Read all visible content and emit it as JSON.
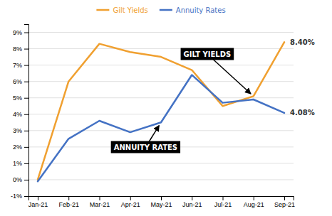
{
  "chart_data": {
    "type": "line",
    "categories": [
      "Jan-21",
      "Feb-21",
      "Mar-21",
      "Apr-21",
      "May-21",
      "Jun-21",
      "Jul-21",
      "Aug-21",
      "Sep-21"
    ],
    "series": [
      {
        "name": "Gilt Yields",
        "color": "#F0A030",
        "values": [
          0.0,
          6.0,
          8.3,
          7.8,
          7.5,
          6.7,
          4.5,
          5.1,
          8.4
        ],
        "value_labels": [
          null,
          null,
          null,
          null,
          null,
          null,
          null,
          null,
          "8.40%"
        ]
      },
      {
        "name": "Annuity Rates",
        "color": "#4472C4",
        "values": [
          -0.1,
          2.5,
          3.6,
          2.9,
          3.5,
          6.4,
          4.7,
          4.9,
          4.08
        ],
        "value_labels": [
          null,
          null,
          null,
          null,
          null,
          null,
          null,
          null,
          "4.08%"
        ]
      }
    ],
    "ylim": [
      -1,
      9.5
    ],
    "yticks": [
      {
        "value": -1,
        "label": "-1%"
      },
      {
        "value": 0,
        "label": "0%"
      },
      {
        "value": 1,
        "label": "1%"
      },
      {
        "value": 2,
        "label": "2%"
      },
      {
        "value": 3,
        "label": "3%"
      },
      {
        "value": 4,
        "label": "4%"
      },
      {
        "value": 5,
        "label": "5%"
      },
      {
        "value": 6,
        "label": "6%"
      },
      {
        "value": 7,
        "label": "7%"
      },
      {
        "value": 8,
        "label": "8%"
      },
      {
        "value": 9,
        "label": "9%"
      }
    ],
    "grid": true,
    "legend": "top",
    "annotations": [
      {
        "text": "GILT YIELDS"
      },
      {
        "text": "ANNUITY RATES"
      }
    ]
  }
}
